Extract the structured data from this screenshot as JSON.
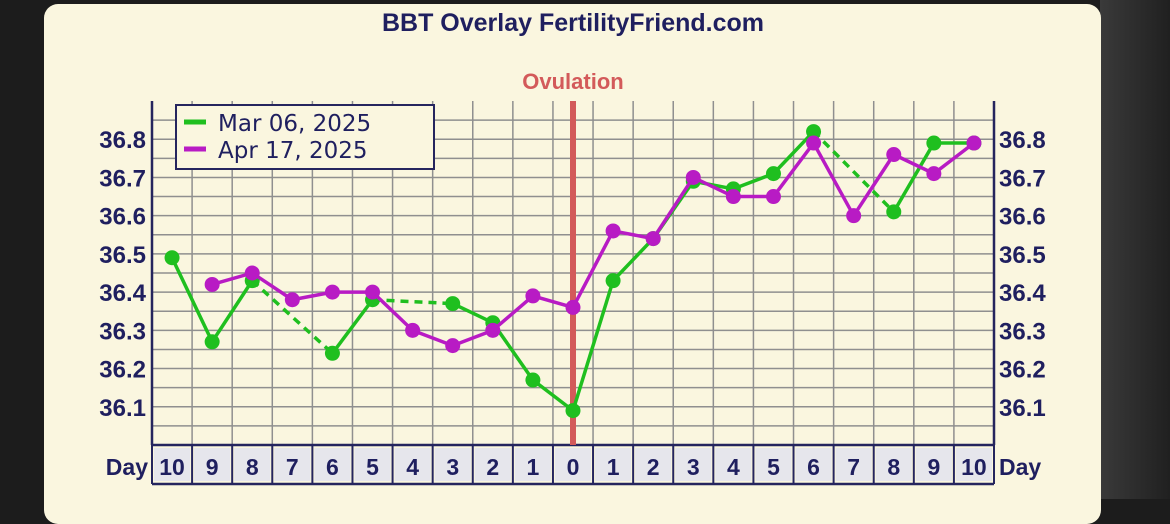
{
  "chart_data": {
    "type": "line",
    "title": "BBT Overlay FertilityFriend.com",
    "annotation": "Ovulation",
    "xlabel": "Day",
    "x": [
      -10,
      -9,
      -8,
      -7,
      -6,
      -5,
      -4,
      -3,
      -2,
      -1,
      0,
      1,
      2,
      3,
      4,
      5,
      6,
      7,
      8,
      9,
      10
    ],
    "x_tick_labels": [
      "10",
      "9",
      "8",
      "7",
      "6",
      "5",
      "4",
      "3",
      "2",
      "1",
      "0",
      "1",
      "2",
      "3",
      "4",
      "5",
      "6",
      "7",
      "8",
      "9",
      "10"
    ],
    "ylim": [
      36.0,
      36.9
    ],
    "y_ticks": [
      "36.1",
      "36.2",
      "36.3",
      "36.4",
      "36.5",
      "36.6",
      "36.7",
      "36.8"
    ],
    "ovulation_day": 0,
    "legend_position": "top-left",
    "grid": true,
    "series": [
      {
        "name": "Mar 06, 2025",
        "color": "#1fbf1f",
        "points": [
          {
            "x": -10,
            "y": 36.49
          },
          {
            "x": -9,
            "y": 36.27
          },
          {
            "x": -8,
            "y": 36.43
          },
          {
            "x": -6,
            "y": 36.24
          },
          {
            "x": -5,
            "y": 36.38
          },
          {
            "x": -3,
            "y": 36.37
          },
          {
            "x": -2,
            "y": 36.32
          },
          {
            "x": -1,
            "y": 36.17
          },
          {
            "x": 0,
            "y": 36.09
          },
          {
            "x": 1,
            "y": 36.43
          },
          {
            "x": 2,
            "y": 36.54
          },
          {
            "x": 3,
            "y": 36.69
          },
          {
            "x": 4,
            "y": 36.67
          },
          {
            "x": 5,
            "y": 36.71
          },
          {
            "x": 6,
            "y": 36.82
          },
          {
            "x": 8,
            "y": 36.61
          },
          {
            "x": 9,
            "y": 36.79
          },
          {
            "x": 10,
            "y": 36.79
          }
        ]
      },
      {
        "name": "Apr 17, 2025",
        "color": "#b81bc4",
        "points": [
          {
            "x": -9,
            "y": 36.42
          },
          {
            "x": -8,
            "y": 36.45
          },
          {
            "x": -7,
            "y": 36.38
          },
          {
            "x": -6,
            "y": 36.4
          },
          {
            "x": -5,
            "y": 36.4
          },
          {
            "x": -4,
            "y": 36.3
          },
          {
            "x": -3,
            "y": 36.26
          },
          {
            "x": -2,
            "y": 36.3
          },
          {
            "x": -1,
            "y": 36.39
          },
          {
            "x": 0,
            "y": 36.36
          },
          {
            "x": 1,
            "y": 36.56
          },
          {
            "x": 2,
            "y": 36.54
          },
          {
            "x": 3,
            "y": 36.7
          },
          {
            "x": 4,
            "y": 36.65
          },
          {
            "x": 5,
            "y": 36.65
          },
          {
            "x": 6,
            "y": 36.79
          },
          {
            "x": 7,
            "y": 36.6
          },
          {
            "x": 8,
            "y": 36.76
          },
          {
            "x": 9,
            "y": 36.71
          },
          {
            "x": 10,
            "y": 36.79
          }
        ]
      }
    ]
  },
  "colors": {
    "panel_bg": "#faf6df",
    "grid": "#8f8f8f",
    "axis": "#25255e",
    "text": "#1f1f5f",
    "ovulation": "#d35a5a",
    "day_cell_bg": "#e6e6ec"
  }
}
